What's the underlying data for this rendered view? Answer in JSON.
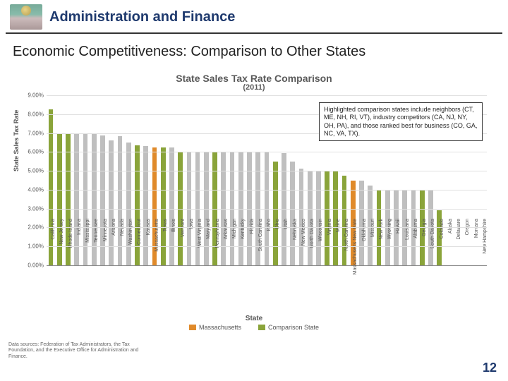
{
  "header": {
    "title": "Administration and Finance"
  },
  "subtitle": "Economic Competitiveness: Comparison to Other States",
  "chart": {
    "type": "bar",
    "title": "State Sales Tax Rate Comparison",
    "subtitle": "(2011)",
    "ylabel": "State Sales Tax Rate",
    "xlabel": "State",
    "ylim": [
      0,
      9
    ],
    "ytick_step": 1,
    "ytick_format_suffix": ".00%",
    "background_color": "#ffffff",
    "grid_color": "#e0e0e0",
    "colors": {
      "default": "#bfbfbf",
      "comparison": "#8aa43a",
      "massachusetts": "#e08a2a"
    },
    "categories": [
      {
        "label": "California",
        "value": 8.25,
        "role": "comparison"
      },
      {
        "label": "New Jersey",
        "value": 7.0,
        "role": "comparison"
      },
      {
        "label": "Rhode Island",
        "value": 7.0,
        "role": "comparison"
      },
      {
        "label": "Indiana",
        "value": 7.0,
        "role": "default"
      },
      {
        "label": "Mississippi",
        "value": 7.0,
        "role": "default"
      },
      {
        "label": "Tennessee",
        "value": 7.0,
        "role": "default"
      },
      {
        "label": "Minnesota",
        "value": 6.875,
        "role": "default"
      },
      {
        "label": "Arizona",
        "value": 6.6,
        "role": "default"
      },
      {
        "label": "Nevada",
        "value": 6.85,
        "role": "default"
      },
      {
        "label": "Washington",
        "value": 6.5,
        "role": "default"
      },
      {
        "label": "Connecticut",
        "value": 6.35,
        "role": "comparison"
      },
      {
        "label": "Kansas",
        "value": 6.3,
        "role": "default"
      },
      {
        "label": "Massachusetts",
        "value": 6.25,
        "role": "massachusetts"
      },
      {
        "label": "Texas",
        "value": 6.25,
        "role": "comparison"
      },
      {
        "label": "Illinois",
        "value": 6.25,
        "role": "default"
      },
      {
        "label": "Vermont",
        "value": 6.0,
        "role": "comparison"
      },
      {
        "label": "Iowa",
        "value": 6.0,
        "role": "default"
      },
      {
        "label": "West Virginia",
        "value": 6.0,
        "role": "default"
      },
      {
        "label": "Maryland",
        "value": 6.0,
        "role": "default"
      },
      {
        "label": "Pennsylvania",
        "value": 6.0,
        "role": "comparison"
      },
      {
        "label": "Arkansas",
        "value": 6.0,
        "role": "default"
      },
      {
        "label": "Michigan",
        "value": 6.0,
        "role": "default"
      },
      {
        "label": "Kentucky",
        "value": 6.0,
        "role": "default"
      },
      {
        "label": "Florida",
        "value": 6.0,
        "role": "default"
      },
      {
        "label": "South Carolina",
        "value": 6.0,
        "role": "default"
      },
      {
        "label": "Idaho",
        "value": 6.0,
        "role": "default"
      },
      {
        "label": "Ohio",
        "value": 5.5,
        "role": "comparison"
      },
      {
        "label": "Utah",
        "value": 5.95,
        "role": "default"
      },
      {
        "label": "Nebraska",
        "value": 5.5,
        "role": "default"
      },
      {
        "label": "New Mexico",
        "value": 5.125,
        "role": "default"
      },
      {
        "label": "North Dakota",
        "value": 5.0,
        "role": "default"
      },
      {
        "label": "Wisconsin",
        "value": 5.0,
        "role": "default"
      },
      {
        "label": "Virginia",
        "value": 5.0,
        "role": "comparison"
      },
      {
        "label": "Maine",
        "value": 5.0,
        "role": "comparison"
      },
      {
        "label": "North Carolina",
        "value": 4.75,
        "role": "comparison"
      },
      {
        "label": "Massachusetts New Rate",
        "value": 4.5,
        "role": "massachusetts"
      },
      {
        "label": "Oklahoma",
        "value": 4.5,
        "role": "default"
      },
      {
        "label": "Missouri",
        "value": 4.225,
        "role": "default"
      },
      {
        "label": "New York",
        "value": 4.0,
        "role": "comparison"
      },
      {
        "label": "Wyoming",
        "value": 4.0,
        "role": "default"
      },
      {
        "label": "Hawaii",
        "value": 4.0,
        "role": "default"
      },
      {
        "label": "Louisiana",
        "value": 4.0,
        "role": "default"
      },
      {
        "label": "Alabama",
        "value": 4.0,
        "role": "default"
      },
      {
        "label": "Georgia",
        "value": 4.0,
        "role": "comparison"
      },
      {
        "label": "South Dakota",
        "value": 4.0,
        "role": "default"
      },
      {
        "label": "Colorado",
        "value": 2.9,
        "role": "comparison"
      },
      {
        "label": "Alaska",
        "value": 0.0,
        "role": "default"
      },
      {
        "label": "Delaware",
        "value": 0.0,
        "role": "default"
      },
      {
        "label": "Oregon",
        "value": 0.0,
        "role": "default"
      },
      {
        "label": "Montana",
        "value": 0.0,
        "role": "default"
      },
      {
        "label": "New Hampshire",
        "value": 0.0,
        "role": "comparison"
      }
    ],
    "legend": [
      {
        "label": "Massachusetts",
        "color_key": "massachusetts"
      },
      {
        "label": "Comparison State",
        "color_key": "comparison"
      }
    ]
  },
  "annotation": "Highlighted comparison states include neighbors (CT, ME, NH, RI, VT), industry competitors (CA, NJ, NY, OH, PA), and those ranked best for business (CO, GA, NC, VA, TX).",
  "source": "Data sources: Federation of Tax Administrators, the Tax Foundation, and the Executive Office for Administration and Finance.",
  "page_number": "12"
}
